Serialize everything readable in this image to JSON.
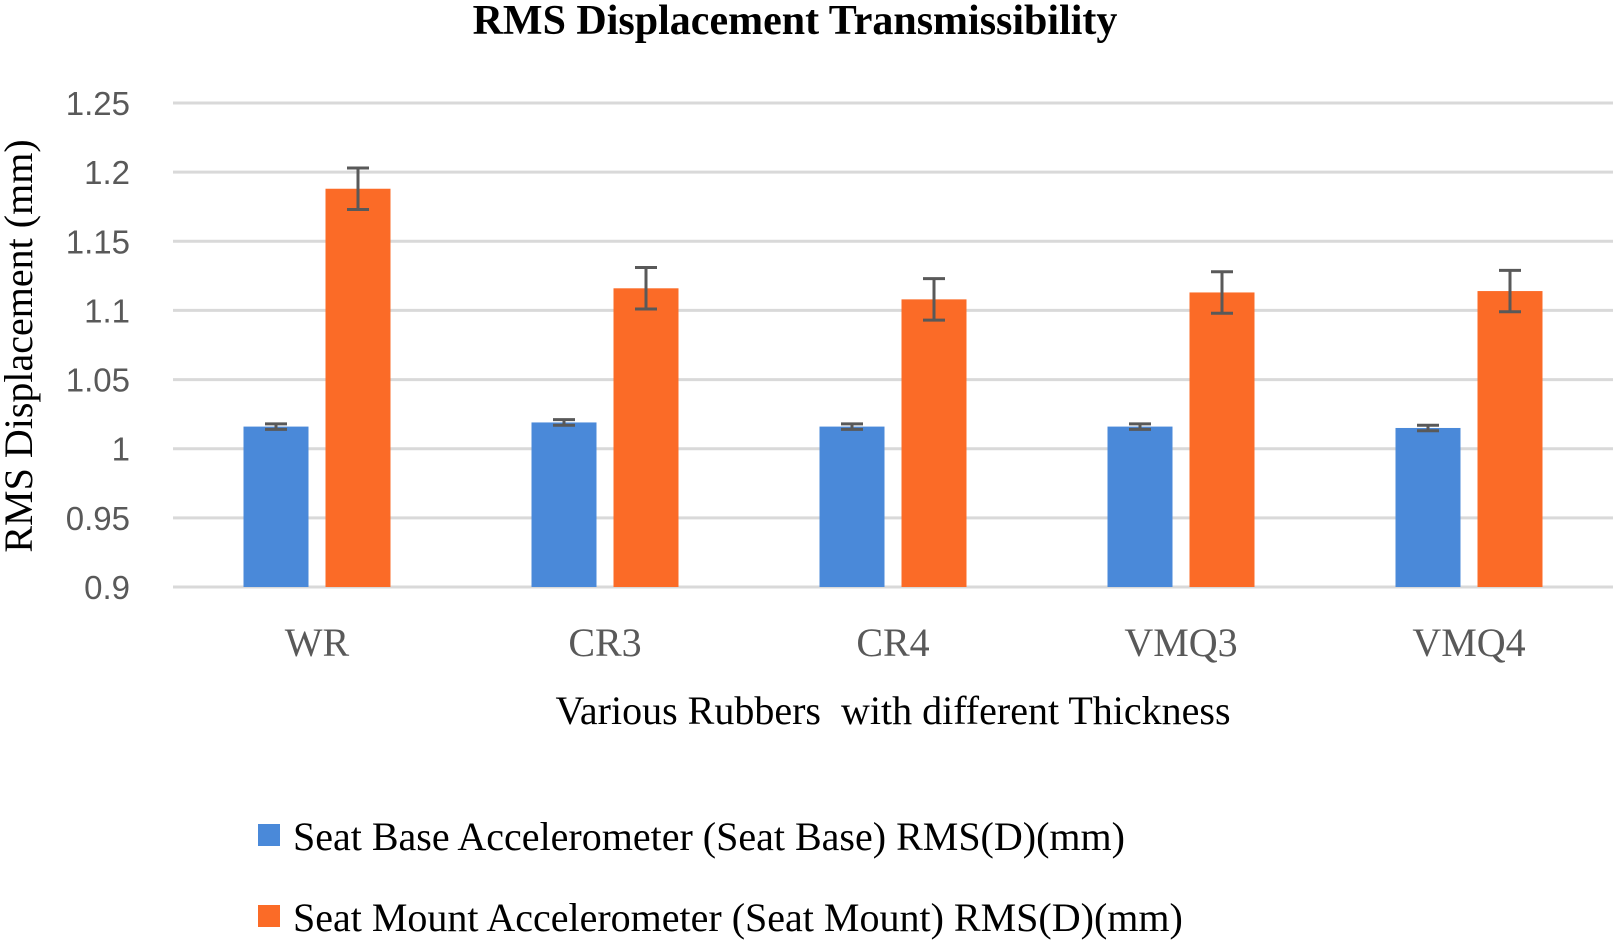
{
  "chart_data": {
    "type": "bar",
    "title": "RMS Displacement Transmissibility",
    "xlabel": "Various Rubbers  with different Thickness",
    "ylabel": "RMS Displacement (mm)",
    "ylim": [
      0.9,
      1.25
    ],
    "yticks": [
      0.9,
      0.95,
      1,
      1.05,
      1.1,
      1.15,
      1.2,
      1.25
    ],
    "ytick_labels": [
      "0.9",
      "0.95",
      "1",
      "1.05",
      "1.1",
      "1.15",
      "1.2",
      "1.25"
    ],
    "grid": true,
    "legend_position": "bottom",
    "categories": [
      "WR",
      "CR3",
      "CR4",
      "VMQ3",
      "VMQ4"
    ],
    "series": [
      {
        "name": "Seat Base Accelerometer (Seat Base) RMS(D)(mm)",
        "color": "#4a89d9",
        "values": [
          1.016,
          1.019,
          1.016,
          1.016,
          1.015
        ],
        "errors": [
          0.002,
          0.002,
          0.002,
          0.002,
          0.002
        ]
      },
      {
        "name": "Seat Mount Accelerometer (Seat Mount) RMS(D)(mm)",
        "color": "#fb6b27",
        "values": [
          1.188,
          1.116,
          1.108,
          1.113,
          1.114
        ],
        "errors": [
          0.015,
          0.015,
          0.015,
          0.015,
          0.015
        ]
      }
    ]
  }
}
